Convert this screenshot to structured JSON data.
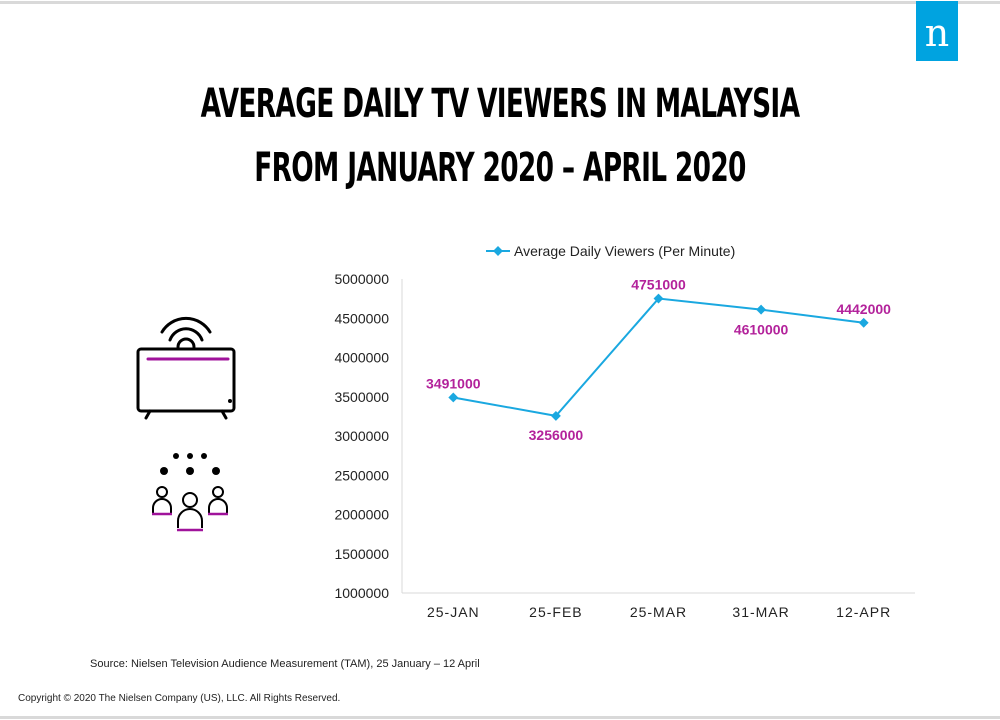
{
  "header": {
    "title_line1": "AVERAGE DAILY TV VIEWERS IN MALAYSIA",
    "title_line2": "FROM JANUARY 2020 – APRIL 2020",
    "logo_letter": "n"
  },
  "footer": {
    "source": "Source:  Nielsen Television Audience Measurement (TAM), 25 January – 12 April",
    "copyright": "Copyright © 2020 The Nielsen Company (US), LLC. All Rights Reserved."
  },
  "icons": [
    "tv-broadcast-icon",
    "audience-group-icon"
  ],
  "colors": {
    "line": "#1aa8e0",
    "label": "#b3229b",
    "brand": "#00a3e0",
    "accent": "#a0139b"
  },
  "chart_data": {
    "type": "line",
    "categories": [
      "25-JAN",
      "25-FEB",
      "25-MAR",
      "31-MAR",
      "12-APR"
    ],
    "series": [
      {
        "name": "Average Daily Viewers (Per Minute)",
        "values": [
          3491000,
          3256000,
          4751000,
          4610000,
          4442000
        ]
      }
    ],
    "data_labels": [
      "3491000",
      "3256000",
      "4751000",
      "4610000",
      "4442000"
    ],
    "ylim": [
      1000000,
      5000000
    ],
    "yticks": [
      "1000000",
      "1500000",
      "2000000",
      "2500000",
      "3000000",
      "3500000",
      "4000000",
      "4500000",
      "5000000"
    ],
    "legend": "top",
    "grid": false
  }
}
